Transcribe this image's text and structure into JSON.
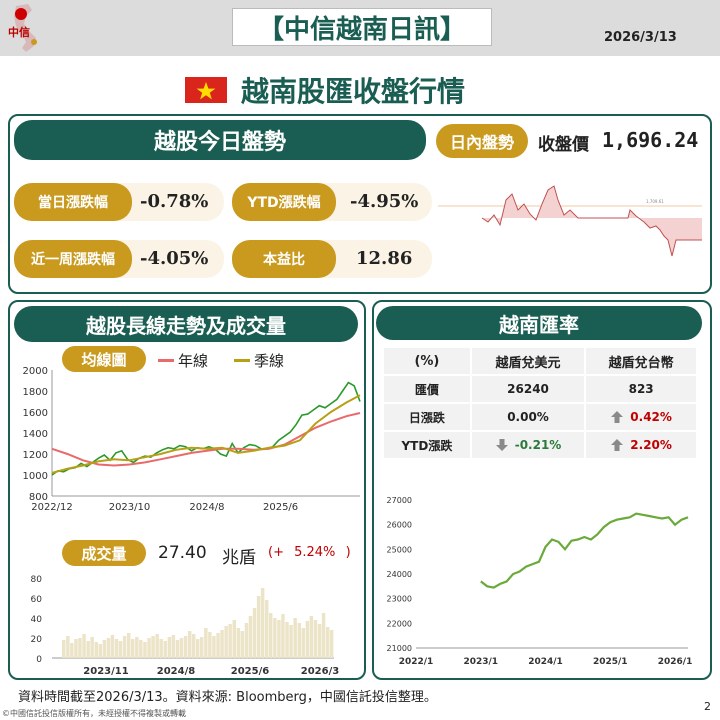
{
  "header": {
    "logo_text": "中信",
    "title": "【中信越南日訊】",
    "date": "2026/3/13",
    "headline": "越南股匯收盤行情"
  },
  "market_today": {
    "section_title": "越股今日盤勢",
    "intraday_label": "日內盤勢",
    "close_label": "收盤價",
    "close_value": "1,696.24",
    "stats": [
      {
        "label": "當日漲跌幅",
        "value": "-0.78%"
      },
      {
        "label": "YTD漲跌幅",
        "value": "-4.95%"
      },
      {
        "label": "近一周漲跌幅",
        "value": "-4.05%"
      },
      {
        "label": "本益比",
        "value": "12.86"
      }
    ],
    "intraday_ref_label": "1,709.61"
  },
  "longterm": {
    "section_title": "越股長線走勢及成交量",
    "ma_label": "均線圖",
    "legend": [
      {
        "name": "年線",
        "color": "#e86a6a"
      },
      {
        "name": "季線",
        "color": "#b8a014"
      }
    ],
    "volume_label": "成交量",
    "volume_value": "27.40",
    "volume_unit": "兆盾",
    "volume_change_open": "(+",
    "volume_change": "5.24%",
    "volume_change_close": ")"
  },
  "fx": {
    "section_title": "越南匯率",
    "headers": [
      "(%)",
      "越盾兌美元",
      "越盾兌台幣"
    ],
    "rows": [
      {
        "label": "匯價",
        "usd": "26240",
        "twd": "823"
      },
      {
        "label": "日漲跌",
        "usd": "0.00%",
        "twd": "0.42%"
      },
      {
        "label": "YTD漲跌",
        "usd": "-0.21%",
        "twd": "2.20%"
      }
    ]
  },
  "footer": {
    "note": "資料時間截至2026/3/13。資料來源: Bloomberg，中國信託投信整理。",
    "copyright": "©中國信託投信版權所有，未經授權不得複製或轉載",
    "page": "2"
  },
  "chart_data": [
    {
      "type": "line",
      "id": "price_ma",
      "x_ticks": [
        "2022/12",
        "2023/10",
        "2024/8",
        "2025/6"
      ],
      "ylim": [
        800,
        2000
      ],
      "y_ticks": [
        800,
        1000,
        1200,
        1400,
        1600,
        1800,
        2000
      ],
      "series": [
        {
          "name": "",
          "color": "#2a9a2a",
          "x": [
            0,
            3,
            6,
            9,
            12,
            15,
            18,
            21,
            24,
            27,
            30,
            33,
            36,
            39,
            42,
            45,
            48,
            51,
            54,
            57,
            60,
            63,
            66,
            69,
            72,
            75,
            78,
            81,
            84,
            87,
            90,
            93,
            96,
            99,
            102,
            105,
            108,
            111,
            114,
            117,
            120,
            123,
            126,
            129,
            132,
            135,
            138,
            141,
            144,
            147,
            150,
            153,
            156,
            159
          ],
          "y": [
            1000,
            1040,
            1030,
            1060,
            1070,
            1110,
            1080,
            1120,
            1160,
            1190,
            1140,
            1210,
            1230,
            1150,
            1120,
            1160,
            1180,
            1170,
            1210,
            1240,
            1260,
            1250,
            1280,
            1270,
            1230,
            1260,
            1250,
            1270,
            1250,
            1200,
            1180,
            1300,
            1210,
            1260,
            1290,
            1280,
            1250,
            1250,
            1270,
            1330,
            1370,
            1410,
            1480,
            1570,
            1580,
            1620,
            1660,
            1640,
            1680,
            1720,
            1800,
            1880,
            1850,
            1700
          ]
        },
        {
          "name": "年線",
          "color": "#e86a6a",
          "x": [
            0,
            8,
            16,
            24,
            32,
            40,
            48,
            56,
            64,
            72,
            80,
            88,
            96,
            104,
            112,
            120,
            128,
            136,
            144,
            152,
            159
          ],
          "y": [
            1250,
            1200,
            1140,
            1100,
            1090,
            1100,
            1120,
            1150,
            1180,
            1210,
            1230,
            1250,
            1250,
            1240,
            1250,
            1290,
            1370,
            1450,
            1510,
            1560,
            1590
          ]
        },
        {
          "name": "季線",
          "color": "#b8a014",
          "x": [
            0,
            8,
            16,
            24,
            32,
            40,
            48,
            56,
            64,
            72,
            80,
            88,
            96,
            104,
            112,
            120,
            128,
            136,
            144,
            152,
            159
          ],
          "y": [
            1020,
            1060,
            1090,
            1130,
            1150,
            1140,
            1170,
            1200,
            1240,
            1260,
            1250,
            1260,
            1210,
            1230,
            1260,
            1280,
            1330,
            1490,
            1600,
            1690,
            1760
          ]
        }
      ]
    },
    {
      "type": "bar",
      "id": "volume",
      "x_ticks": [
        "2023/11",
        "2024/8",
        "2025/6",
        "2026/3"
      ],
      "ylim": [
        0,
        80
      ],
      "y_ticks": [
        0,
        20,
        40,
        60,
        80
      ],
      "values": [
        18,
        22,
        15,
        19,
        20,
        24,
        17,
        21,
        16,
        14,
        18,
        20,
        23,
        19,
        17,
        22,
        25,
        19,
        21,
        18,
        16,
        20,
        22,
        24,
        19,
        17,
        21,
        23,
        18,
        20,
        22,
        27,
        24,
        19,
        21,
        30,
        26,
        22,
        25,
        28,
        32,
        34,
        38,
        30,
        27,
        35,
        42,
        50,
        62,
        70,
        58,
        45,
        40,
        38,
        44,
        36,
        33,
        40,
        35,
        30,
        37,
        42,
        38,
        34,
        45,
        31,
        28
      ]
    },
    {
      "type": "line",
      "id": "fx_usd",
      "x_ticks": [
        "2022/1",
        "2023/1",
        "2024/1",
        "2025/1",
        "2026/1"
      ],
      "ylim": [
        21000,
        27000
      ],
      "y_ticks": [
        21000,
        22000,
        23000,
        24000,
        25000,
        26000,
        27000
      ],
      "series": [
        {
          "name": "",
          "color": "#6aaa3a",
          "x": [
            1.0,
            1.1,
            1.2,
            1.3,
            1.4,
            1.5,
            1.6,
            1.7,
            1.8,
            1.9,
            2.0,
            2.1,
            2.2,
            2.3,
            2.4,
            2.5,
            2.6,
            2.7,
            2.8,
            2.9,
            3.0,
            3.1,
            3.2,
            3.3,
            3.4,
            3.5,
            3.6,
            3.7,
            3.8,
            3.9,
            4.0,
            4.1,
            4.2
          ],
          "y": [
            23700,
            23500,
            23450,
            23600,
            23700,
            24000,
            24100,
            24300,
            24400,
            24500,
            25100,
            25400,
            25300,
            25000,
            25350,
            25400,
            25500,
            25400,
            25600,
            25900,
            26100,
            26200,
            26250,
            26300,
            26450,
            26400,
            26350,
            26300,
            26250,
            26300,
            26000,
            26200,
            26300
          ]
        }
      ]
    }
  ]
}
